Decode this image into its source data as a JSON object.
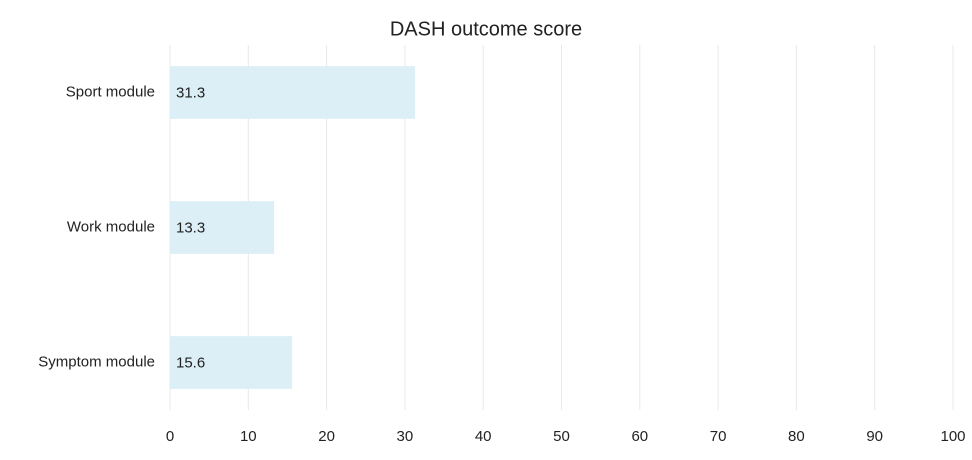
{
  "chart_data": {
    "type": "bar",
    "orientation": "horizontal",
    "title": "DASH outcome score",
    "categories": [
      "Sport module",
      "Work module",
      "Symptom module"
    ],
    "values": [
      31.3,
      13.3,
      15.6
    ],
    "color": "#dceef6",
    "xlim": [
      0,
      100
    ],
    "xticks": [
      0,
      10,
      20,
      30,
      40,
      50,
      60,
      70,
      80,
      90,
      100
    ],
    "grid": true
  }
}
